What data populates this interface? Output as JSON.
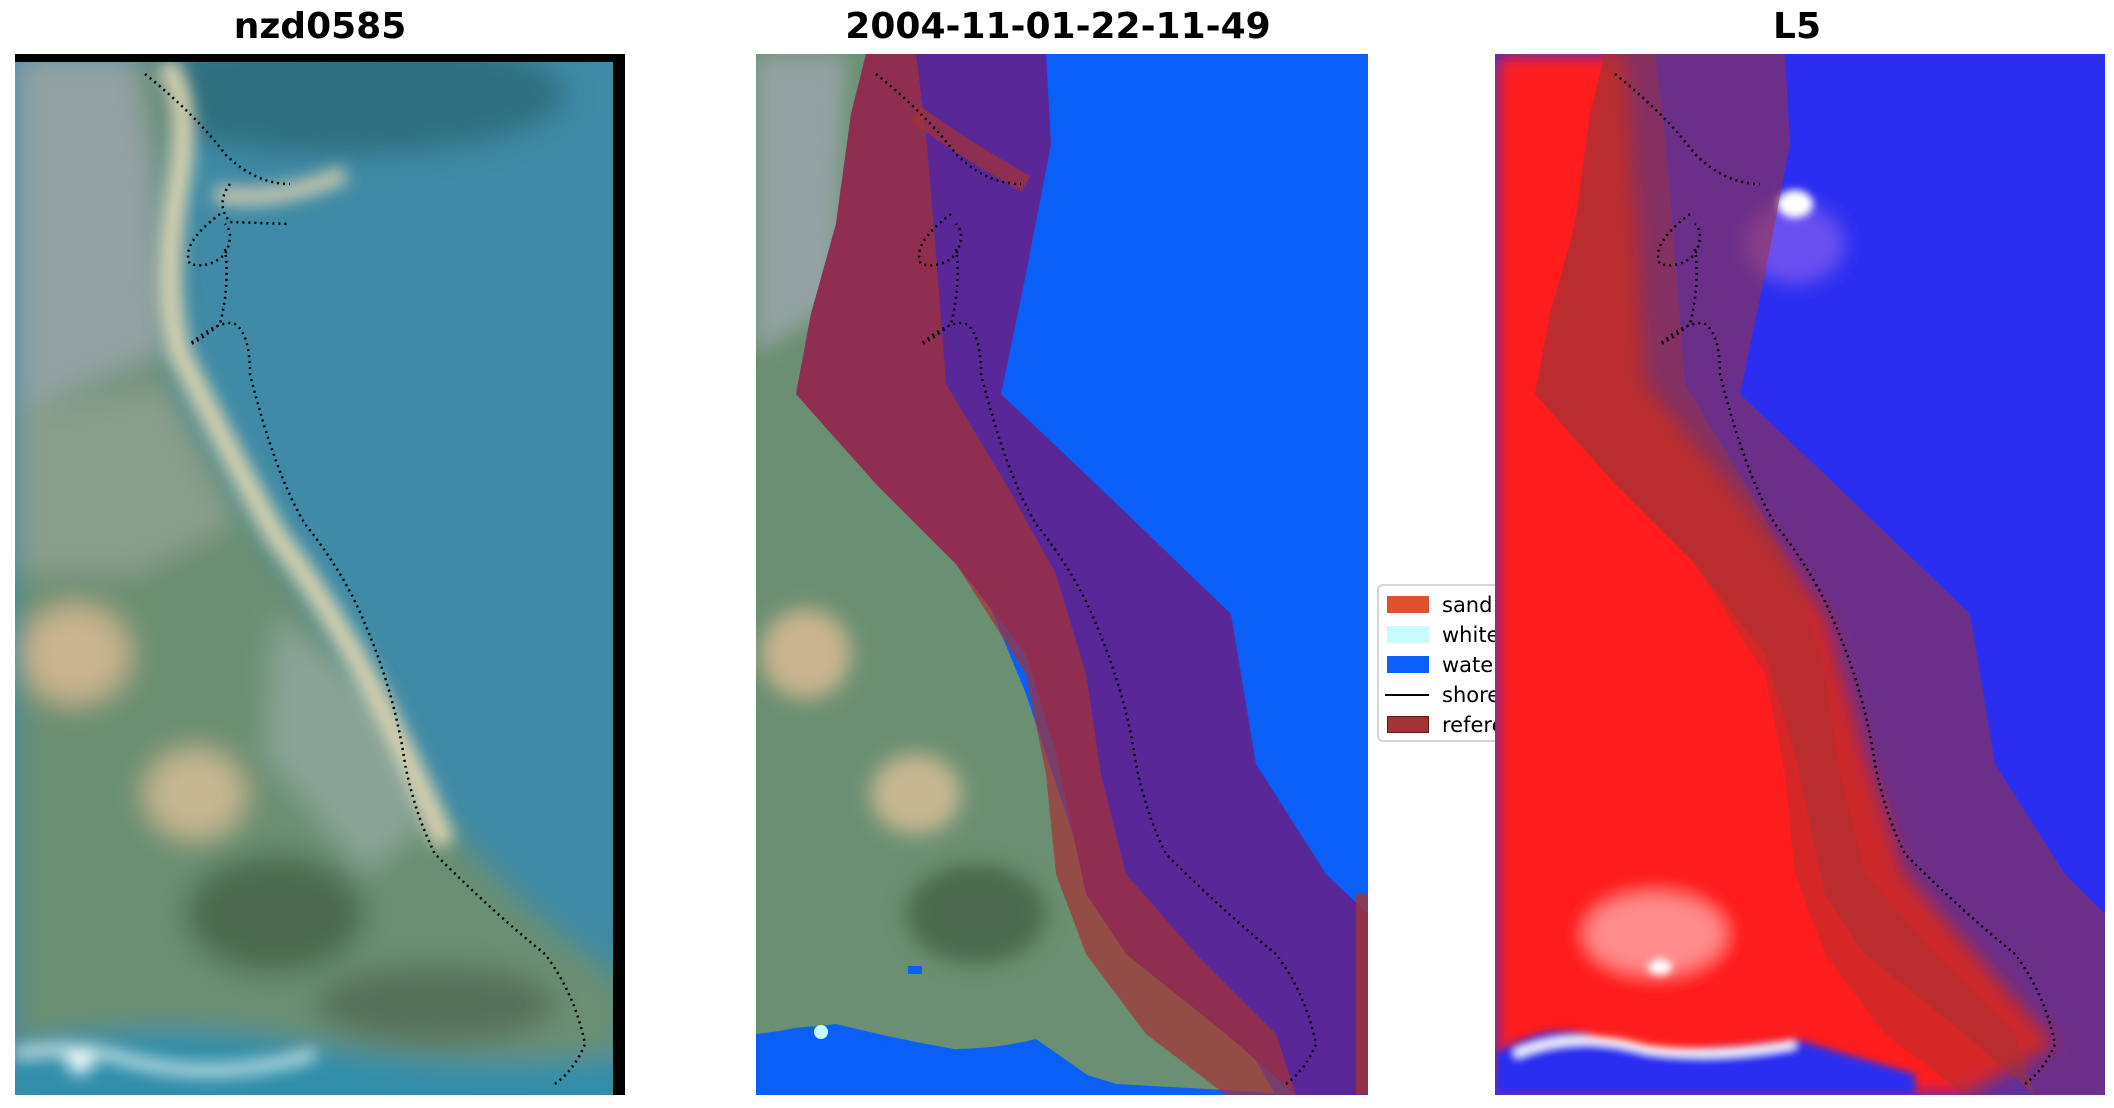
{
  "panels": [
    {
      "title": "nzd0585"
    },
    {
      "title": "2004-11-01-22-11-49"
    },
    {
      "title": "L5"
    }
  ],
  "legend": {
    "items": [
      {
        "label": "sand",
        "type": "patch",
        "color": "#e0502f"
      },
      {
        "label": "white-water",
        "type": "patch",
        "color": "#c8fcfc"
      },
      {
        "label": "water",
        "type": "patch",
        "color": "#0a5ff8"
      },
      {
        "label": "shoreline",
        "type": "line",
        "color": "#000000"
      },
      {
        "label": "reference",
        "type": "patch",
        "color": "#a33234"
      }
    ]
  },
  "colors": {
    "water_rgb": "#3f8aa6",
    "land_green": "#5f8c68",
    "urban_grey": "#9aa7a6",
    "sand_beige": "#cfc8a2",
    "classified_water": "#0a5ff8",
    "reference_band": "#a33234",
    "overlap_purple": "#5a2798",
    "index_red": "#ff1a1a",
    "index_blue": "#2a2ef0"
  }
}
